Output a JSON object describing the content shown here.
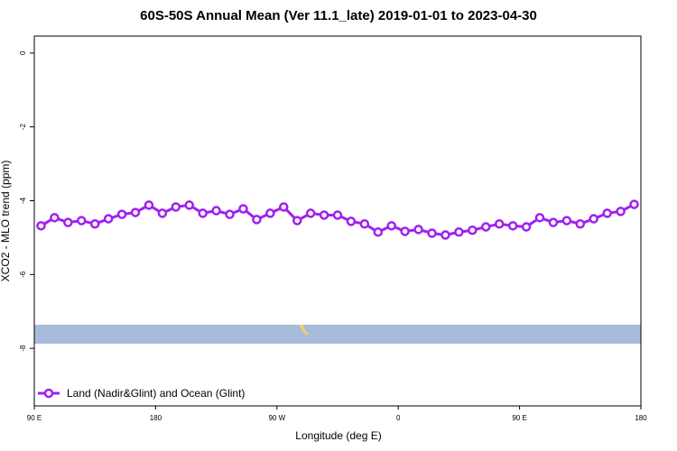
{
  "chart_data": {
    "type": "line",
    "title": "60S-50S Annual Mean (Ver 11.1_late)   2019-01-01 to 2023-04-30",
    "x_label": "Longitude (deg E)",
    "y_label": "XCO2 - MLO trend (ppm)",
    "x": [
      95,
      105,
      115,
      125,
      135,
      145,
      155,
      165,
      175,
      185,
      195,
      205,
      215,
      225,
      235,
      245,
      255,
      265,
      275,
      285,
      295,
      305,
      315,
      325,
      335,
      345,
      355,
      365,
      375,
      385,
      395,
      405,
      415,
      425,
      435,
      445,
      455,
      465,
      475,
      485,
      495,
      505,
      515,
      525,
      535
    ],
    "series": [
      {
        "name": "Land (Nadir&Glint) and Ocean (Glint)",
        "color": "#a020f0",
        "values": [
          -4.68,
          -4.46,
          -4.59,
          -4.54,
          -4.63,
          -4.49,
          -4.37,
          -4.32,
          -4.12,
          -4.34,
          -4.17,
          -4.12,
          -4.34,
          -4.27,
          -4.37,
          -4.22,
          -4.51,
          -4.34,
          -4.17,
          -4.54,
          -4.34,
          -4.39,
          -4.39,
          -4.56,
          -4.63,
          -4.85,
          -4.68,
          -4.83,
          -4.78,
          -4.88,
          -4.93,
          -4.85,
          -4.8,
          -4.71,
          -4.63,
          -4.68,
          -4.71,
          -4.46,
          -4.59,
          -4.54,
          -4.63,
          -4.49,
          -4.34,
          -4.29,
          -4.1
        ]
      }
    ],
    "xlim": [
      90,
      540
    ],
    "xticks": [
      {
        "value": 90,
        "label": "90 E"
      },
      {
        "value": 180,
        "label": "180"
      },
      {
        "value": 270,
        "label": "90 W"
      },
      {
        "value": 360,
        "label": "0"
      },
      {
        "value": 450,
        "label": "90 E"
      },
      {
        "value": 540,
        "label": "180"
      }
    ],
    "ylim": [
      -9.56,
      0.46
    ],
    "yticks": [
      0,
      -2,
      -4,
      -6,
      -8
    ],
    "legend": "bottom-left"
  }
}
